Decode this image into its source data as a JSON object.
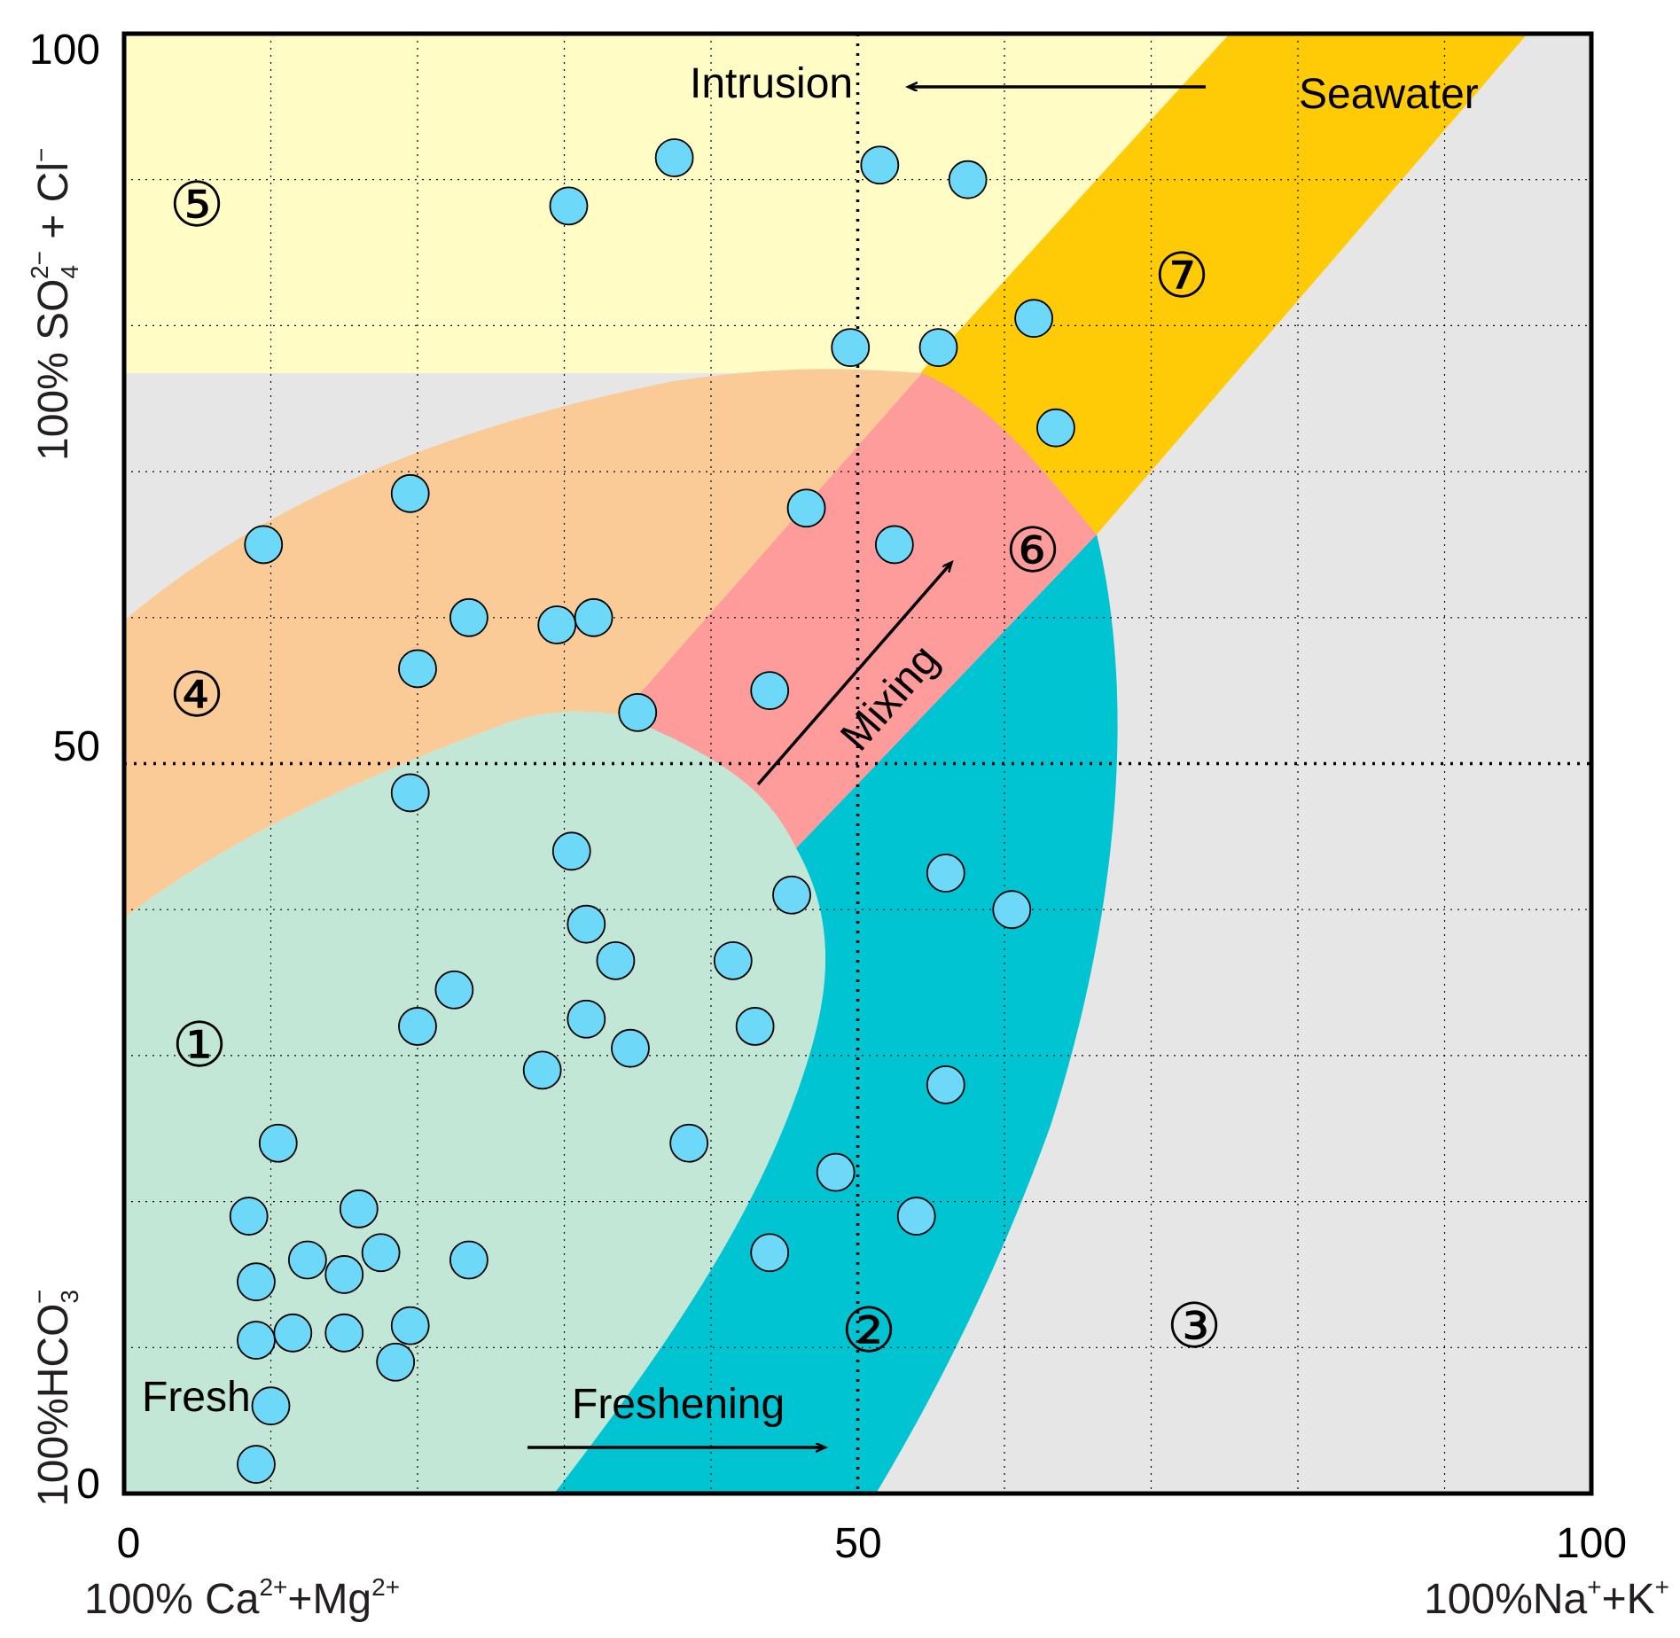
{
  "chart_data": {
    "type": "scatter",
    "title": "",
    "x_axis": {
      "label_left": {
        "base": "100% Ca",
        "sup": "2+",
        "mid": "+Mg",
        "sup2": "2+"
      },
      "label_right": {
        "base": "100%Na",
        "sup": "+",
        "mid": "+K",
        "sup2": "+"
      },
      "ticks": [
        "0",
        "50",
        "100"
      ],
      "range": [
        0,
        100
      ]
    },
    "y_axis": {
      "label_top": {
        "base": "100% SO",
        "sub": "4",
        "sup": "2−",
        "rest": " + Cl",
        "sup2": "−"
      },
      "label_bottom": {
        "base": "100%HCO",
        "sub": "3",
        "sup": "−"
      },
      "ticks": [
        "0",
        "50",
        "100"
      ],
      "range": [
        0,
        100
      ]
    },
    "regions": [
      {
        "id": "1",
        "symbol": "①",
        "color": "#c3e7d6"
      },
      {
        "id": "2",
        "symbol": "②",
        "color": "#00c4d2"
      },
      {
        "id": "3",
        "symbol": "③",
        "color": "#e6e6e6"
      },
      {
        "id": "4",
        "symbol": "④",
        "color": "#fbcb97"
      },
      {
        "id": "5",
        "symbol": "⑤",
        "color": "#fffcc6"
      },
      {
        "id": "6",
        "symbol": "⑥",
        "color": "#fd9c9a"
      },
      {
        "id": "7",
        "symbol": "⑦",
        "color": "#ffcb06"
      }
    ],
    "annotations": {
      "intrusion": "Intrusion",
      "seawater": "Seawater",
      "mixing": "Mixing",
      "freshening": "Freshening",
      "fresh": "Fresh"
    },
    "marker_color": "#6dd8f7",
    "points": [
      [
        37.5,
        91.5
      ],
      [
        30.3,
        88.2
      ],
      [
        51.5,
        91
      ],
      [
        57.5,
        90
      ],
      [
        49.5,
        78.5
      ],
      [
        55.5,
        78.5
      ],
      [
        62,
        80.5
      ],
      [
        63.5,
        73
      ],
      [
        46.5,
        67.5
      ],
      [
        52.5,
        65
      ],
      [
        19.5,
        68.5
      ],
      [
        9.5,
        65
      ],
      [
        23.5,
        60
      ],
      [
        29.5,
        59.5
      ],
      [
        32,
        60
      ],
      [
        20,
        56.5
      ],
      [
        35,
        53.5
      ],
      [
        44,
        55
      ],
      [
        19.5,
        48
      ],
      [
        30.5,
        44
      ],
      [
        45.5,
        41
      ],
      [
        56,
        42.5
      ],
      [
        60.5,
        40
      ],
      [
        31.5,
        39
      ],
      [
        33.5,
        36.5
      ],
      [
        41.5,
        36.5
      ],
      [
        22.5,
        34.5
      ],
      [
        20,
        32
      ],
      [
        31.5,
        32.5
      ],
      [
        43,
        32
      ],
      [
        34.5,
        30.5
      ],
      [
        28.5,
        29
      ],
      [
        56,
        28
      ],
      [
        38.5,
        24
      ],
      [
        10.5,
        24
      ],
      [
        48.5,
        22
      ],
      [
        54,
        19
      ],
      [
        8.5,
        19
      ],
      [
        16,
        19.5
      ],
      [
        17.5,
        16.5
      ],
      [
        12.5,
        16
      ],
      [
        15,
        15
      ],
      [
        23.5,
        16
      ],
      [
        44,
        16.5
      ],
      [
        9,
        14.5
      ],
      [
        11.5,
        11
      ],
      [
        15,
        11
      ],
      [
        19.5,
        11.5
      ],
      [
        9,
        10.5
      ],
      [
        18.5,
        9
      ],
      [
        10,
        6
      ],
      [
        9,
        2
      ]
    ]
  }
}
